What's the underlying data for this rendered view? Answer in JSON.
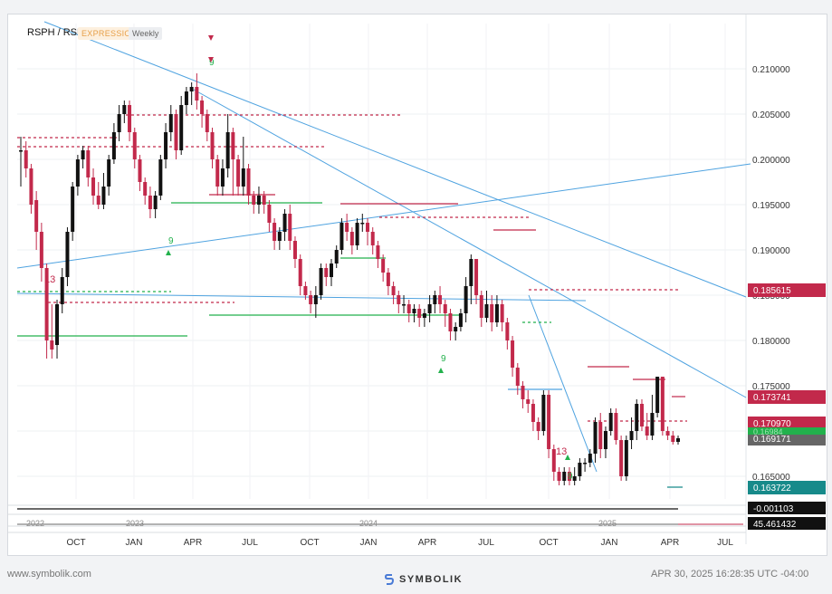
{
  "header": {
    "symbol": "RSPH / RSP",
    "expression_badge": "EXPRESSION",
    "interval_badge": "Weekly"
  },
  "footer": {
    "site": "www.symbolik.com",
    "brand": "SYMBOLIK",
    "timestamp": "APR 30, 2025 16:28:35 UTC -04:00"
  },
  "colors": {
    "up": "#111111",
    "down": "#c2294b",
    "trendline": "#4fa3e0",
    "support": "#22b14c",
    "resistance": "#c2294b",
    "teal": "#178a8a"
  },
  "chart_data": {
    "type": "candlestick",
    "y_range": [
      0.1635,
      0.2125
    ],
    "y_ticks": [
      "0.210000",
      "0.205000",
      "0.200000",
      "0.195000",
      "0.190000",
      "0.185000",
      "0.180000",
      "0.175000",
      "0.170000",
      "0.165000"
    ],
    "x_month_labels": [
      "OCT",
      "JAN",
      "APR",
      "JUL",
      "OCT",
      "JAN",
      "APR",
      "JUL",
      "OCT",
      "JAN",
      "APR",
      "JUL"
    ],
    "year_labels": [
      "2022",
      "2023",
      "2024",
      "2025"
    ],
    "price_tags": [
      {
        "value": "0.185615",
        "color": "#c2294b"
      },
      {
        "value": "0.173741",
        "color": "#c2294b"
      },
      {
        "value": "0.170970",
        "color": "#c2294b"
      },
      {
        "value": "0.169171",
        "color": "#666666"
      },
      {
        "value": "0.163722",
        "color": "#178a8a"
      }
    ],
    "hidden_tag": "0.16984",
    "lower_panels": [
      {
        "value": "-0.001103"
      },
      {
        "value": "45.461432"
      }
    ],
    "count_labels": [
      {
        "text": "13",
        "color": "#c2294b"
      },
      {
        "text": "9",
        "color": "#22b14c"
      },
      {
        "text": "9",
        "color": "#22b14c"
      },
      {
        "text": "9",
        "color": "#22b14c"
      },
      {
        "text": "13",
        "color": "#c2294b"
      },
      {
        "text": "9",
        "color": "#22b14c"
      }
    ],
    "candles": [
      [
        0.201,
        0.201,
        0.197,
        0.2025
      ],
      [
        0.201,
        0.199,
        0.198,
        0.202
      ],
      [
        0.199,
        0.195,
        0.194,
        0.1995
      ],
      [
        0.1955,
        0.192,
        0.19,
        0.1965
      ],
      [
        0.192,
        0.188,
        0.1865,
        0.193
      ],
      [
        0.188,
        0.18,
        0.178,
        0.1885
      ],
      [
        0.18,
        0.179,
        0.178,
        0.184
      ],
      [
        0.1795,
        0.184,
        0.178,
        0.1845
      ],
      [
        0.184,
        0.187,
        0.183,
        0.188
      ],
      [
        0.187,
        0.192,
        0.186,
        0.1925
      ],
      [
        0.192,
        0.197,
        0.191,
        0.1975
      ],
      [
        0.197,
        0.2,
        0.196,
        0.2005
      ],
      [
        0.2,
        0.201,
        0.199,
        0.2015
      ],
      [
        0.201,
        0.198,
        0.197,
        0.2015
      ],
      [
        0.198,
        0.196,
        0.195,
        0.199
      ],
      [
        0.196,
        0.195,
        0.1945,
        0.1975
      ],
      [
        0.195,
        0.197,
        0.1945,
        0.1985
      ],
      [
        0.197,
        0.2,
        0.196,
        0.2005
      ],
      [
        0.2,
        0.203,
        0.1995,
        0.204
      ],
      [
        0.203,
        0.205,
        0.202,
        0.206
      ],
      [
        0.205,
        0.206,
        0.204,
        0.2065
      ],
      [
        0.206,
        0.203,
        0.202,
        0.2065
      ],
      [
        0.203,
        0.2,
        0.199,
        0.2035
      ],
      [
        0.2,
        0.1975,
        0.1965,
        0.2005
      ],
      [
        0.1975,
        0.196,
        0.195,
        0.198
      ],
      [
        0.196,
        0.1945,
        0.1935,
        0.197
      ],
      [
        0.1945,
        0.196,
        0.1935,
        0.1965
      ],
      [
        0.196,
        0.2,
        0.1955,
        0.2005
      ],
      [
        0.2,
        0.203,
        0.199,
        0.204
      ],
      [
        0.203,
        0.205,
        0.202,
        0.206
      ],
      [
        0.205,
        0.201,
        0.2,
        0.2055
      ],
      [
        0.201,
        0.206,
        0.2005,
        0.207
      ],
      [
        0.206,
        0.2075,
        0.205,
        0.208
      ],
      [
        0.2075,
        0.208,
        0.206,
        0.2085
      ],
      [
        0.208,
        0.2065,
        0.2055,
        0.2095
      ],
      [
        0.2065,
        0.205,
        0.2035,
        0.207
      ],
      [
        0.205,
        0.203,
        0.202,
        0.2055
      ],
      [
        0.203,
        0.2,
        0.199,
        0.2035
      ],
      [
        0.2,
        0.197,
        0.196,
        0.2005
      ],
      [
        0.197,
        0.199,
        0.196,
        0.2
      ],
      [
        0.199,
        0.203,
        0.198,
        0.205
      ],
      [
        0.203,
        0.2,
        0.196,
        0.2035
      ],
      [
        0.2,
        0.197,
        0.196,
        0.2005
      ],
      [
        0.197,
        0.199,
        0.196,
        0.2025
      ],
      [
        0.199,
        0.196,
        0.195,
        0.1995
      ],
      [
        0.196,
        0.195,
        0.194,
        0.1965
      ],
      [
        0.195,
        0.196,
        0.194,
        0.197
      ],
      [
        0.196,
        0.195,
        0.194,
        0.1965
      ],
      [
        0.195,
        0.193,
        0.192,
        0.1955
      ],
      [
        0.193,
        0.191,
        0.19,
        0.1935
      ],
      [
        0.191,
        0.192,
        0.19,
        0.1925
      ],
      [
        0.192,
        0.194,
        0.191,
        0.1945
      ],
      [
        0.194,
        0.191,
        0.19,
        0.195
      ],
      [
        0.191,
        0.189,
        0.188,
        0.1915
      ],
      [
        0.189,
        0.186,
        0.185,
        0.1895
      ],
      [
        0.186,
        0.185,
        0.1845,
        0.1865
      ],
      [
        0.185,
        0.184,
        0.183,
        0.1855
      ],
      [
        0.184,
        0.185,
        0.1825,
        0.186
      ],
      [
        0.185,
        0.188,
        0.1845,
        0.1885
      ],
      [
        0.188,
        0.187,
        0.186,
        0.1885
      ],
      [
        0.187,
        0.1885,
        0.186,
        0.189
      ],
      [
        0.1885,
        0.19,
        0.188,
        0.1905
      ],
      [
        0.19,
        0.193,
        0.1895,
        0.1935
      ],
      [
        0.193,
        0.192,
        0.191,
        0.194
      ],
      [
        0.192,
        0.1905,
        0.1895,
        0.1925
      ],
      [
        0.1905,
        0.193,
        0.19,
        0.1935
      ],
      [
        0.193,
        0.193,
        0.192,
        0.194
      ],
      [
        0.193,
        0.192,
        0.1905,
        0.1935
      ],
      [
        0.192,
        0.1905,
        0.1895,
        0.1925
      ],
      [
        0.1905,
        0.189,
        0.188,
        0.191
      ],
      [
        0.189,
        0.1875,
        0.1865,
        0.1895
      ],
      [
        0.1875,
        0.186,
        0.185,
        0.188
      ],
      [
        0.186,
        0.185,
        0.184,
        0.1865
      ],
      [
        0.185,
        0.184,
        0.183,
        0.1855
      ],
      [
        0.184,
        0.184,
        0.183,
        0.185
      ],
      [
        0.184,
        0.183,
        0.182,
        0.1845
      ],
      [
        0.183,
        0.1835,
        0.182,
        0.184
      ],
      [
        0.1835,
        0.1825,
        0.1815,
        0.184
      ],
      [
        0.1825,
        0.183,
        0.1815,
        0.1835
      ],
      [
        0.183,
        0.184,
        0.182,
        0.185
      ],
      [
        0.184,
        0.185,
        0.183,
        0.1855
      ],
      [
        0.185,
        0.184,
        0.183,
        0.186
      ],
      [
        0.184,
        0.183,
        0.1815,
        0.1845
      ],
      [
        0.183,
        0.181,
        0.18,
        0.1835
      ],
      [
        0.181,
        0.1815,
        0.18,
        0.182
      ],
      [
        0.1815,
        0.183,
        0.181,
        0.1835
      ],
      [
        0.183,
        0.186,
        0.182,
        0.187
      ],
      [
        0.186,
        0.189,
        0.184,
        0.1895
      ],
      [
        0.189,
        0.185,
        0.184,
        0.189
      ],
      [
        0.185,
        0.1825,
        0.1815,
        0.1855
      ],
      [
        0.1825,
        0.184,
        0.182,
        0.1855
      ],
      [
        0.184,
        0.182,
        0.181,
        0.185
      ],
      [
        0.182,
        0.184,
        0.1815,
        0.185
      ],
      [
        0.184,
        0.182,
        0.181,
        0.1845
      ],
      [
        0.182,
        0.18,
        0.179,
        0.1825
      ],
      [
        0.18,
        0.177,
        0.176,
        0.1805
      ],
      [
        0.177,
        0.175,
        0.174,
        0.1775
      ],
      [
        0.175,
        0.1735,
        0.1725,
        0.1755
      ],
      [
        0.1735,
        0.173,
        0.172,
        0.1745
      ],
      [
        0.173,
        0.171,
        0.17,
        0.1735
      ],
      [
        0.171,
        0.17,
        0.169,
        0.1715
      ],
      [
        0.17,
        0.174,
        0.1695,
        0.1745
      ],
      [
        0.174,
        0.168,
        0.167,
        0.1745
      ],
      [
        0.168,
        0.1655,
        0.1645,
        0.1685
      ],
      [
        0.1655,
        0.1645,
        0.164,
        0.166
      ],
      [
        0.1645,
        0.1655,
        0.164,
        0.166
      ],
      [
        0.1655,
        0.1645,
        0.164,
        0.166
      ],
      [
        0.1645,
        0.165,
        0.164,
        0.166
      ],
      [
        0.165,
        0.1665,
        0.1645,
        0.167
      ],
      [
        0.1665,
        0.1665,
        0.1655,
        0.167
      ],
      [
        0.1665,
        0.1675,
        0.166,
        0.168
      ],
      [
        0.1675,
        0.171,
        0.1665,
        0.1715
      ],
      [
        0.171,
        0.168,
        0.167,
        0.172
      ],
      [
        0.168,
        0.17,
        0.167,
        0.1705
      ],
      [
        0.17,
        0.172,
        0.1695,
        0.1725
      ],
      [
        0.172,
        0.169,
        0.1685,
        0.1725
      ],
      [
        0.169,
        0.165,
        0.1645,
        0.1695
      ],
      [
        0.165,
        0.169,
        0.1645,
        0.1695
      ],
      [
        0.169,
        0.17,
        0.168,
        0.1715
      ],
      [
        0.17,
        0.173,
        0.169,
        0.1735
      ],
      [
        0.173,
        0.1705,
        0.17,
        0.1735
      ],
      [
        0.1705,
        0.1695,
        0.169,
        0.172
      ],
      [
        0.1695,
        0.172,
        0.169,
        0.174
      ],
      [
        0.172,
        0.176,
        0.1715,
        0.176
      ],
      [
        0.176,
        0.17,
        0.1695,
        0.176
      ],
      [
        0.17,
        0.1695,
        0.169,
        0.1705
      ],
      [
        0.1695,
        0.1688,
        0.1685,
        0.17
      ],
      [
        0.1688,
        0.1692,
        0.1685,
        0.1695
      ]
    ]
  }
}
